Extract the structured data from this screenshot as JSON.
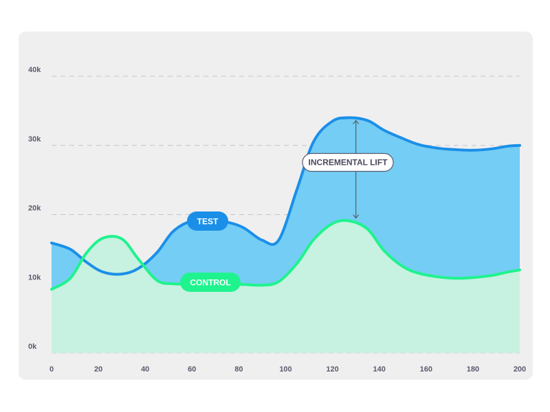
{
  "chart_data": {
    "type": "area",
    "x_ticks": [
      0,
      20,
      40,
      60,
      80,
      100,
      120,
      140,
      160,
      180,
      200
    ],
    "y_ticks": [
      "0k",
      "10k",
      "20k",
      "30k",
      "40k"
    ],
    "ylim": [
      0,
      40
    ],
    "xlim": [
      0,
      200
    ],
    "grid": true,
    "series": [
      {
        "name": "TEST",
        "color": "#1b8fe8",
        "fill": "#74cdf4",
        "x": [
          0,
          8,
          15,
          22,
          30,
          37,
          45,
          52,
          60,
          67,
          75,
          82,
          90,
          97,
          105,
          112,
          120,
          127,
          135,
          142,
          150,
          157,
          165,
          172,
          180,
          188,
          195,
          200
        ],
        "values": [
          15.9,
          15.0,
          13.1,
          11.7,
          11.4,
          12.2,
          14.5,
          17.6,
          19.1,
          19.1,
          18.9,
          18.1,
          16.3,
          16.3,
          23.8,
          30.6,
          33.5,
          34.0,
          33.6,
          32.2,
          31.0,
          30.1,
          29.6,
          29.4,
          29.3,
          29.5,
          29.9,
          30.0
        ]
      },
      {
        "name": "CONTROL",
        "color": "#1ff38e",
        "fill": "#c7f1e0",
        "x": [
          0,
          8,
          15,
          22,
          30,
          37,
          45,
          52,
          60,
          67,
          75,
          82,
          90,
          97,
          105,
          112,
          120,
          127,
          135,
          142,
          150,
          157,
          165,
          172,
          180,
          188,
          195,
          200
        ],
        "values": [
          9.2,
          10.8,
          14.5,
          16.6,
          16.5,
          13.6,
          10.5,
          10.0,
          10.0,
          10.0,
          9.9,
          9.9,
          9.8,
          10.3,
          13.0,
          16.4,
          18.7,
          19.1,
          17.9,
          14.8,
          12.5,
          11.5,
          11.0,
          10.8,
          10.9,
          11.2,
          11.7,
          12.0
        ]
      }
    ],
    "annotation": {
      "label": "INCREMENTAL LIFT",
      "x": 130,
      "from_y": 19.1,
      "to_y": 34.0
    }
  }
}
